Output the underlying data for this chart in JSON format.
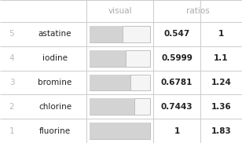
{
  "rows": [
    {
      "rank": "5",
      "name": "astatine",
      "visual": 0.547,
      "ratio1": "0.547",
      "ratio2": "1"
    },
    {
      "rank": "4",
      "name": "iodine",
      "visual": 0.5999,
      "ratio1": "0.5999",
      "ratio2": "1.1"
    },
    {
      "rank": "3",
      "name": "bromine",
      "visual": 0.6781,
      "ratio1": "0.6781",
      "ratio2": "1.24"
    },
    {
      "rank": "2",
      "name": "chlorine",
      "visual": 0.7443,
      "ratio1": "0.7443",
      "ratio2": "1.36"
    },
    {
      "rank": "1",
      "name": "fluorine",
      "visual": 1.0,
      "ratio1": "1",
      "ratio2": "1.83"
    }
  ],
  "col_headers": [
    "visual",
    "ratios"
  ],
  "bar_filled_color": "#d3d3d3",
  "bar_empty_color": "#f5f5f5",
  "bar_border_color": "#c0c0c0",
  "header_text_color": "#aaaaaa",
  "rank_text_color": "#bbbbbb",
  "name_text_color": "#222222",
  "value_text_color": "#222222",
  "background_color": "#ffffff",
  "grid_color": "#cccccc",
  "figsize": [
    3.08,
    1.82
  ],
  "dpi": 100
}
